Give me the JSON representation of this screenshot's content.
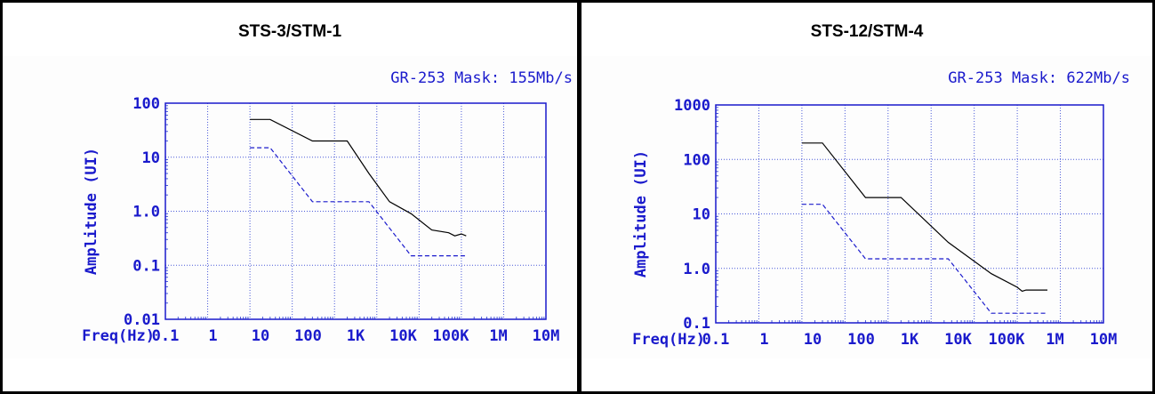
{
  "colors": {
    "accent": "#1a1acc",
    "grid": "#4a5ad8",
    "limit": "#000000",
    "mask": "#1a1acc"
  },
  "chart_data": [
    {
      "type": "line",
      "title": "STS-3/STM-1",
      "subtitle": "GR-253 Mask: 155Mb/s",
      "ylabel": "Amplitude (UI)",
      "xlabel": "Freq(Hz)",
      "scale": "log-log",
      "grid": true,
      "xlim": [
        0.1,
        100000000
      ],
      "ylim": [
        0.01,
        100
      ],
      "xticks": [
        "0.1",
        "1",
        "10",
        "100",
        "1K",
        "10K",
        "100K",
        "1M",
        "10M"
      ],
      "yticks": [
        "100",
        "10",
        "1.0",
        "0.1",
        "0.01"
      ],
      "series": [
        {
          "style": "solid",
          "x": [
            10,
            30,
            300,
            2000,
            6500,
            20000,
            65000,
            200000,
            500000,
            700000,
            1000000,
            1300000
          ],
          "y": [
            50,
            50,
            20,
            20,
            5,
            1.5,
            0.9,
            0.45,
            0.4,
            0.35,
            0.38,
            0.35
          ]
        },
        {
          "style": "dashed",
          "x": [
            10,
            30,
            300,
            6500,
            65000,
            1300000
          ],
          "y": [
            15,
            15,
            1.5,
            1.5,
            0.15,
            0.15
          ]
        }
      ]
    },
    {
      "type": "line",
      "title": "STS-12/STM-4",
      "subtitle": "GR-253 Mask: 622Mb/s",
      "ylabel": "Amplitude (UI)",
      "xlabel": "Freq(Hz)",
      "scale": "log-log",
      "grid": true,
      "xlim": [
        0.1,
        100000000
      ],
      "ylim": [
        0.1,
        1000
      ],
      "xticks": [
        "0.1",
        "1",
        "10",
        "100",
        "1K",
        "10K",
        "100K",
        "1M",
        "10M"
      ],
      "yticks": [
        "1000",
        "100",
        "10",
        "1.0",
        "0.1"
      ],
      "series": [
        {
          "style": "solid",
          "x": [
            10,
            30,
            300,
            2000,
            25000,
            250000,
            1000000,
            1300000,
            1600000,
            5000000
          ],
          "y": [
            200,
            200,
            20,
            20,
            3,
            0.8,
            0.45,
            0.38,
            0.4,
            0.4
          ]
        },
        {
          "style": "dashed",
          "x": [
            10,
            30,
            300,
            25000,
            250000,
            5000000
          ],
          "y": [
            15,
            15,
            1.5,
            1.5,
            0.15,
            0.15
          ]
        }
      ]
    }
  ]
}
